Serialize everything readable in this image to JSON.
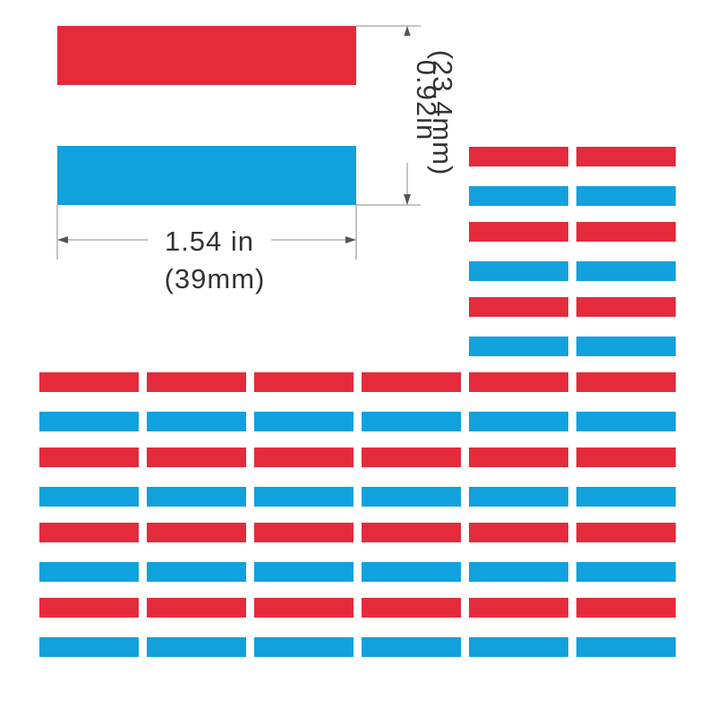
{
  "width_label": "1.54 in",
  "width_label_mm": "(39mm)",
  "height_label": "0.92in",
  "height_label_mm": "(23.4mm)"
}
